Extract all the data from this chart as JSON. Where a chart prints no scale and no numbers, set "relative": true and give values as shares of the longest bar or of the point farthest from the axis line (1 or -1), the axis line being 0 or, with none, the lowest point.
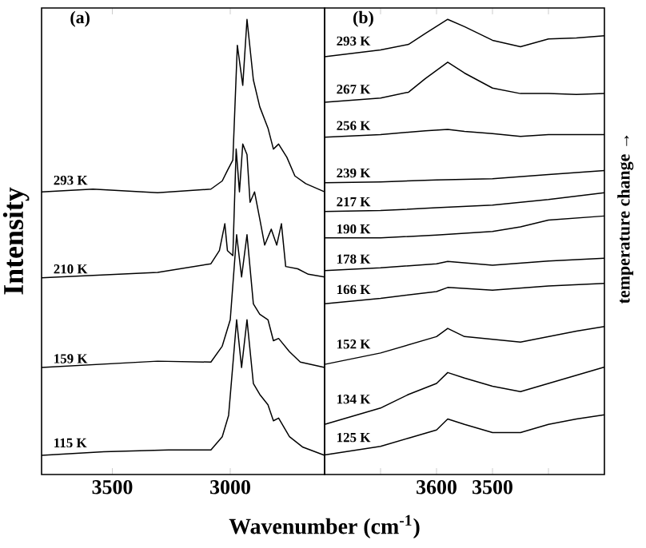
{
  "chart_data": [
    {
      "type": "line",
      "title": "(a)",
      "xlabel": "Wavenumber (cm$^{-1}$)",
      "ylabel": "Intensity",
      "relative": true,
      "xlim": [
        3800,
        2600
      ],
      "xticks": [
        3500,
        3000
      ],
      "series": [
        {
          "name": "293 K",
          "color": "#000000",
          "x": [
            3800,
            3582,
            3308,
            3082,
            3034,
            3012,
            2989,
            2970,
            2947,
            2929,
            2902,
            2875,
            2840,
            2817,
            2795,
            2760,
            2726,
            2680,
            2600
          ],
          "values": [
            0.621,
            0.627,
            0.619,
            0.627,
            0.645,
            0.668,
            0.691,
            0.943,
            0.855,
            1.0,
            0.867,
            0.808,
            0.761,
            0.715,
            0.726,
            0.697,
            0.656,
            0.639,
            0.621
          ]
        },
        {
          "name": "210 K",
          "color": "#000000",
          "x": [
            3800,
            3308,
            3082,
            3046,
            3023,
            3012,
            2989,
            2975,
            2961,
            2947,
            2929,
            2916,
            2897,
            2875,
            2854,
            2826,
            2803,
            2783,
            2765,
            2714,
            2669,
            2600
          ],
          "values": [
            0.432,
            0.444,
            0.463,
            0.492,
            0.551,
            0.492,
            0.481,
            0.715,
            0.621,
            0.726,
            0.703,
            0.598,
            0.621,
            0.562,
            0.504,
            0.539,
            0.504,
            0.551,
            0.457,
            0.452,
            0.44,
            0.434
          ]
        },
        {
          "name": "159 K",
          "color": "#000000",
          "x": [
            3800,
            3308,
            3082,
            3034,
            3000,
            2973,
            2952,
            2929,
            2902,
            2875,
            2840,
            2817,
            2795,
            2749,
            2703,
            2600
          ],
          "values": [
            0.235,
            0.249,
            0.247,
            0.282,
            0.34,
            0.527,
            0.434,
            0.527,
            0.375,
            0.352,
            0.34,
            0.294,
            0.299,
            0.27,
            0.247,
            0.235
          ]
        },
        {
          "name": "115 K",
          "color": "#000000",
          "x": [
            3800,
            3536,
            3262,
            3082,
            3034,
            3007,
            2973,
            2952,
            2929,
            2902,
            2875,
            2840,
            2817,
            2795,
            2749,
            2692,
            2600
          ],
          "values": [
            0.042,
            0.05,
            0.054,
            0.054,
            0.083,
            0.13,
            0.34,
            0.235,
            0.34,
            0.2,
            0.176,
            0.153,
            0.118,
            0.124,
            0.083,
            0.06,
            0.042
          ]
        }
      ]
    },
    {
      "type": "line",
      "title": "(b)",
      "y2label": "temperature change →",
      "relative": true,
      "xlim": [
        3800,
        3300
      ],
      "xticks": [
        {
          "value": 3700,
          "label": null
        },
        3600,
        3500,
        {
          "value": 3400,
          "label": null
        }
      ],
      "series": [
        {
          "name": "293 K",
          "color": "#000000",
          "x": [
            3800,
            3700,
            3650,
            3620,
            3580,
            3550,
            3500,
            3450,
            3400,
            3350,
            3300
          ],
          "values": [
            0.918,
            0.933,
            0.945,
            0.969,
            1.0,
            0.984,
            0.954,
            0.94,
            0.957,
            0.959,
            0.964
          ]
        },
        {
          "name": "267 K",
          "color": "#000000",
          "x": [
            3800,
            3700,
            3650,
            3620,
            3580,
            3550,
            3500,
            3450,
            3400,
            3350,
            3300
          ],
          "values": [
            0.818,
            0.827,
            0.84,
            0.87,
            0.906,
            0.882,
            0.849,
            0.837,
            0.837,
            0.835,
            0.837
          ]
        },
        {
          "name": "256 K",
          "color": "#000000",
          "x": [
            3800,
            3700,
            3650,
            3620,
            3580,
            3550,
            3500,
            3450,
            3400,
            3350,
            3300
          ],
          "values": [
            0.741,
            0.747,
            0.752,
            0.755,
            0.758,
            0.754,
            0.749,
            0.743,
            0.747,
            0.747,
            0.747
          ]
        },
        {
          "name": "239 K",
          "color": "#000000",
          "x": [
            3800,
            3700,
            3600,
            3500,
            3400,
            3300
          ],
          "values": [
            0.641,
            0.643,
            0.647,
            0.65,
            0.659,
            0.668
          ]
        },
        {
          "name": "217 K",
          "color": "#000000",
          "x": [
            3800,
            3700,
            3600,
            3500,
            3400,
            3300
          ],
          "values": [
            0.578,
            0.58,
            0.586,
            0.592,
            0.604,
            0.619
          ]
        },
        {
          "name": "190 K",
          "color": "#000000",
          "x": [
            3800,
            3700,
            3600,
            3500,
            3450,
            3400,
            3300
          ],
          "values": [
            0.52,
            0.52,
            0.526,
            0.534,
            0.544,
            0.559,
            0.568
          ]
        },
        {
          "name": "178 K",
          "color": "#000000",
          "x": [
            3800,
            3700,
            3600,
            3580,
            3500,
            3400,
            3300
          ],
          "values": [
            0.448,
            0.454,
            0.463,
            0.468,
            0.46,
            0.469,
            0.475
          ]
        },
        {
          "name": "166 K",
          "color": "#000000",
          "x": [
            3800,
            3700,
            3600,
            3580,
            3500,
            3400,
            3300
          ],
          "values": [
            0.375,
            0.387,
            0.402,
            0.411,
            0.405,
            0.414,
            0.42
          ]
        },
        {
          "name": "152 K",
          "color": "#000000",
          "x": [
            3800,
            3700,
            3650,
            3600,
            3580,
            3550,
            3500,
            3450,
            3400,
            3350,
            3300
          ],
          "values": [
            0.242,
            0.267,
            0.285,
            0.303,
            0.321,
            0.303,
            0.297,
            0.291,
            0.303,
            0.315,
            0.325
          ]
        },
        {
          "name": "134 K",
          "color": "#000000",
          "x": [
            3800,
            3700,
            3650,
            3600,
            3580,
            3550,
            3500,
            3450,
            3400,
            3350,
            3300
          ],
          "values": [
            0.11,
            0.146,
            0.176,
            0.2,
            0.224,
            0.212,
            0.194,
            0.182,
            0.2,
            0.218,
            0.236
          ]
        },
        {
          "name": "125 K",
          "color": "#000000",
          "x": [
            3800,
            3700,
            3650,
            3600,
            3580,
            3550,
            3500,
            3450,
            3400,
            3350,
            3300
          ],
          "values": [
            0.043,
            0.062,
            0.08,
            0.098,
            0.122,
            0.11,
            0.092,
            0.092,
            0.11,
            0.122,
            0.131
          ]
        }
      ]
    }
  ]
}
